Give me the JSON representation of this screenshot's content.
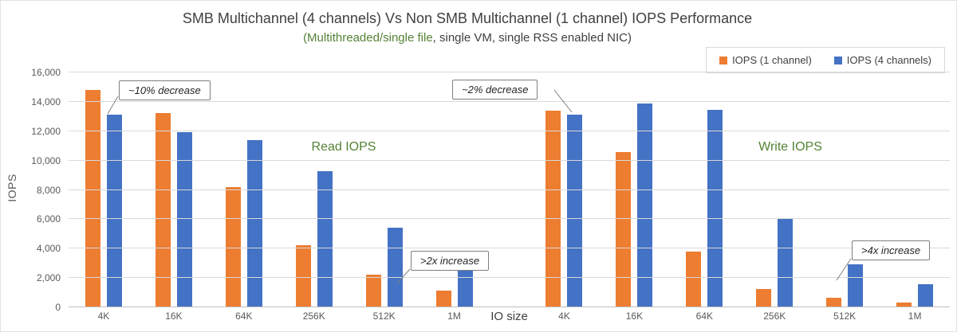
{
  "chart_data": {
    "type": "bar",
    "title": "SMB Multichannel (4 channels) Vs Non SMB Multichannel (1 channel) IOPS Performance",
    "subtitle_highlight": "(Multithreaded/single file",
    "subtitle_rest": ", single VM, single RSS enabled NIC)",
    "xlabel": "IO size",
    "ylabel": "IOPS",
    "ylim": [
      0,
      16000
    ],
    "yticks": [
      0,
      2000,
      4000,
      6000,
      8000,
      10000,
      12000,
      14000,
      16000
    ],
    "ytick_labels": [
      "0",
      "2,000",
      "4,000",
      "6,000",
      "8,000",
      "10,000",
      "12,000",
      "14,000",
      "16,000"
    ],
    "grid": true,
    "legend_position": "top-right",
    "legend": [
      {
        "label": "IOPS (1 channel)",
        "color": "#ED7D31"
      },
      {
        "label": "IOPS (4 channels)",
        "color": "#4472C4"
      }
    ],
    "groups": [
      {
        "label": "Read IOPS",
        "categories": [
          "4K",
          "16K",
          "64K",
          "256K",
          "512K",
          "1M"
        ],
        "series": [
          {
            "name": "IOPS (1 channel)",
            "values": [
              14800,
              13250,
              8200,
              4250,
              2250,
              1150
            ]
          },
          {
            "name": "IOPS (4 channels)",
            "values": [
              13100,
              11950,
              11400,
              9300,
              5450,
              2800
            ]
          }
        ]
      },
      {
        "label": "Write IOPS",
        "categories": [
          "4K",
          "16K",
          "64K",
          "256K",
          "512K",
          "1M"
        ],
        "series": [
          {
            "name": "IOPS (1 channel)",
            "values": [
              13400,
              10550,
              3800,
              1250,
              650,
              330
            ]
          },
          {
            "name": "IOPS (4 channels)",
            "values": [
              13100,
              13900,
              13450,
              6000,
              2950,
              1550
            ]
          }
        ]
      }
    ],
    "annotations": [
      {
        "text": "~10% decrease"
      },
      {
        "text": "~2% decrease"
      },
      {
        "text": ">2x increase"
      },
      {
        "text": ">4x increase"
      }
    ]
  }
}
